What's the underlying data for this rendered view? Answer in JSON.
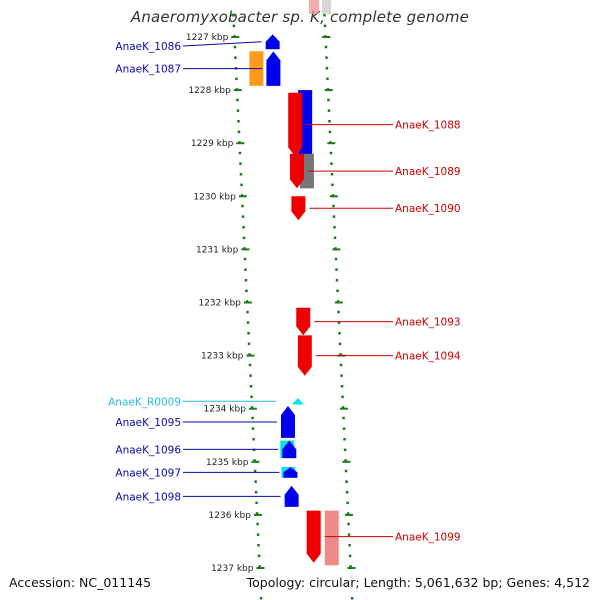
{
  "title": "Anaeromyxobacter sp. K, complete genome",
  "footer": {
    "accession": "Accession: NC_011145",
    "summary": "Topology: circular; Length: 5,061,632 bp; Genes: 4,512"
  },
  "colors": {
    "ruler_dots": "#1a7a1a",
    "backbone": "#8a8a8a",
    "blue": "#0000ee",
    "red": "#ee0000",
    "orange": "#ff9a1a",
    "cyan": "#00e5e5",
    "gray": "#777777",
    "pink": "#f08a8a",
    "label_blue": "#0a0aaa",
    "label_red": "#cc0000",
    "label_cyan": "#29bce0"
  },
  "ticks": [
    {
      "label": "1227 kbp",
      "kbp": 1227
    },
    {
      "label": "1228 kbp",
      "kbp": 1228
    },
    {
      "label": "1229 kbp",
      "kbp": 1229
    },
    {
      "label": "1230 kbp",
      "kbp": 1230
    },
    {
      "label": "1231 kbp",
      "kbp": 1231
    },
    {
      "label": "1232 kbp",
      "kbp": 1232
    },
    {
      "label": "1233 kbp",
      "kbp": 1233
    },
    {
      "label": "1234 kbp",
      "kbp": 1234
    },
    {
      "label": "1235 kbp",
      "kbp": 1235
    },
    {
      "label": "1236 kbp",
      "kbp": 1236
    },
    {
      "label": "1237 kbp",
      "kbp": 1237
    }
  ],
  "genes": [
    {
      "label": "AnaeK_1086",
      "side": "left",
      "color": "blue",
      "start": 1226.95,
      "end": 1227.23
    },
    {
      "label": "AnaeK_1087",
      "side": "left",
      "color": "blue",
      "start": 1227.27,
      "end": 1227.92
    },
    {
      "label": "AnaeK_1088",
      "side": "right",
      "color": "red",
      "start": 1228.05,
      "end": 1229.25
    },
    {
      "label": "AnaeK_1089",
      "side": "right",
      "color": "red",
      "start": 1229.2,
      "end": 1229.85
    },
    {
      "label": "AnaeK_1090",
      "side": "right",
      "color": "red",
      "start": 1230.0,
      "end": 1230.45
    },
    {
      "label": "AnaeK_1093",
      "side": "right",
      "color": "red",
      "start": 1232.1,
      "end": 1232.62
    },
    {
      "label": "AnaeK_1094",
      "side": "right",
      "color": "red",
      "start": 1232.62,
      "end": 1233.38
    },
    {
      "label": "AnaeK_R0009",
      "side": "left",
      "color": "cyan",
      "start": 1233.8,
      "end": 1233.92
    },
    {
      "label": "AnaeK_1095",
      "side": "left",
      "color": "blue",
      "start": 1233.95,
      "end": 1234.55
    },
    {
      "label": "AnaeK_1096",
      "side": "left",
      "color": "blue",
      "start": 1234.6,
      "end": 1234.93
    },
    {
      "label": "AnaeK_1097",
      "side": "left",
      "color": "blue",
      "start": 1235.1,
      "end": 1235.3
    },
    {
      "label": "AnaeK_1098",
      "side": "left",
      "color": "blue",
      "start": 1235.45,
      "end": 1235.85
    },
    {
      "label": "AnaeK_1099",
      "side": "right",
      "color": "red",
      "start": 1235.92,
      "end": 1236.9
    }
  ],
  "hits": [
    {
      "color": "orange",
      "start": 1227.27,
      "end": 1227.92
    },
    {
      "color": "blue",
      "start": 1228.0,
      "end": 1229.25
    },
    {
      "color": "gray",
      "start": 1229.2,
      "end": 1229.85
    },
    {
      "color": "cyan",
      "start": 1234.6,
      "end": 1234.93
    },
    {
      "color": "cyan",
      "start": 1235.1,
      "end": 1235.3
    },
    {
      "color": "pink",
      "start": 1235.92,
      "end": 1236.95
    }
  ]
}
